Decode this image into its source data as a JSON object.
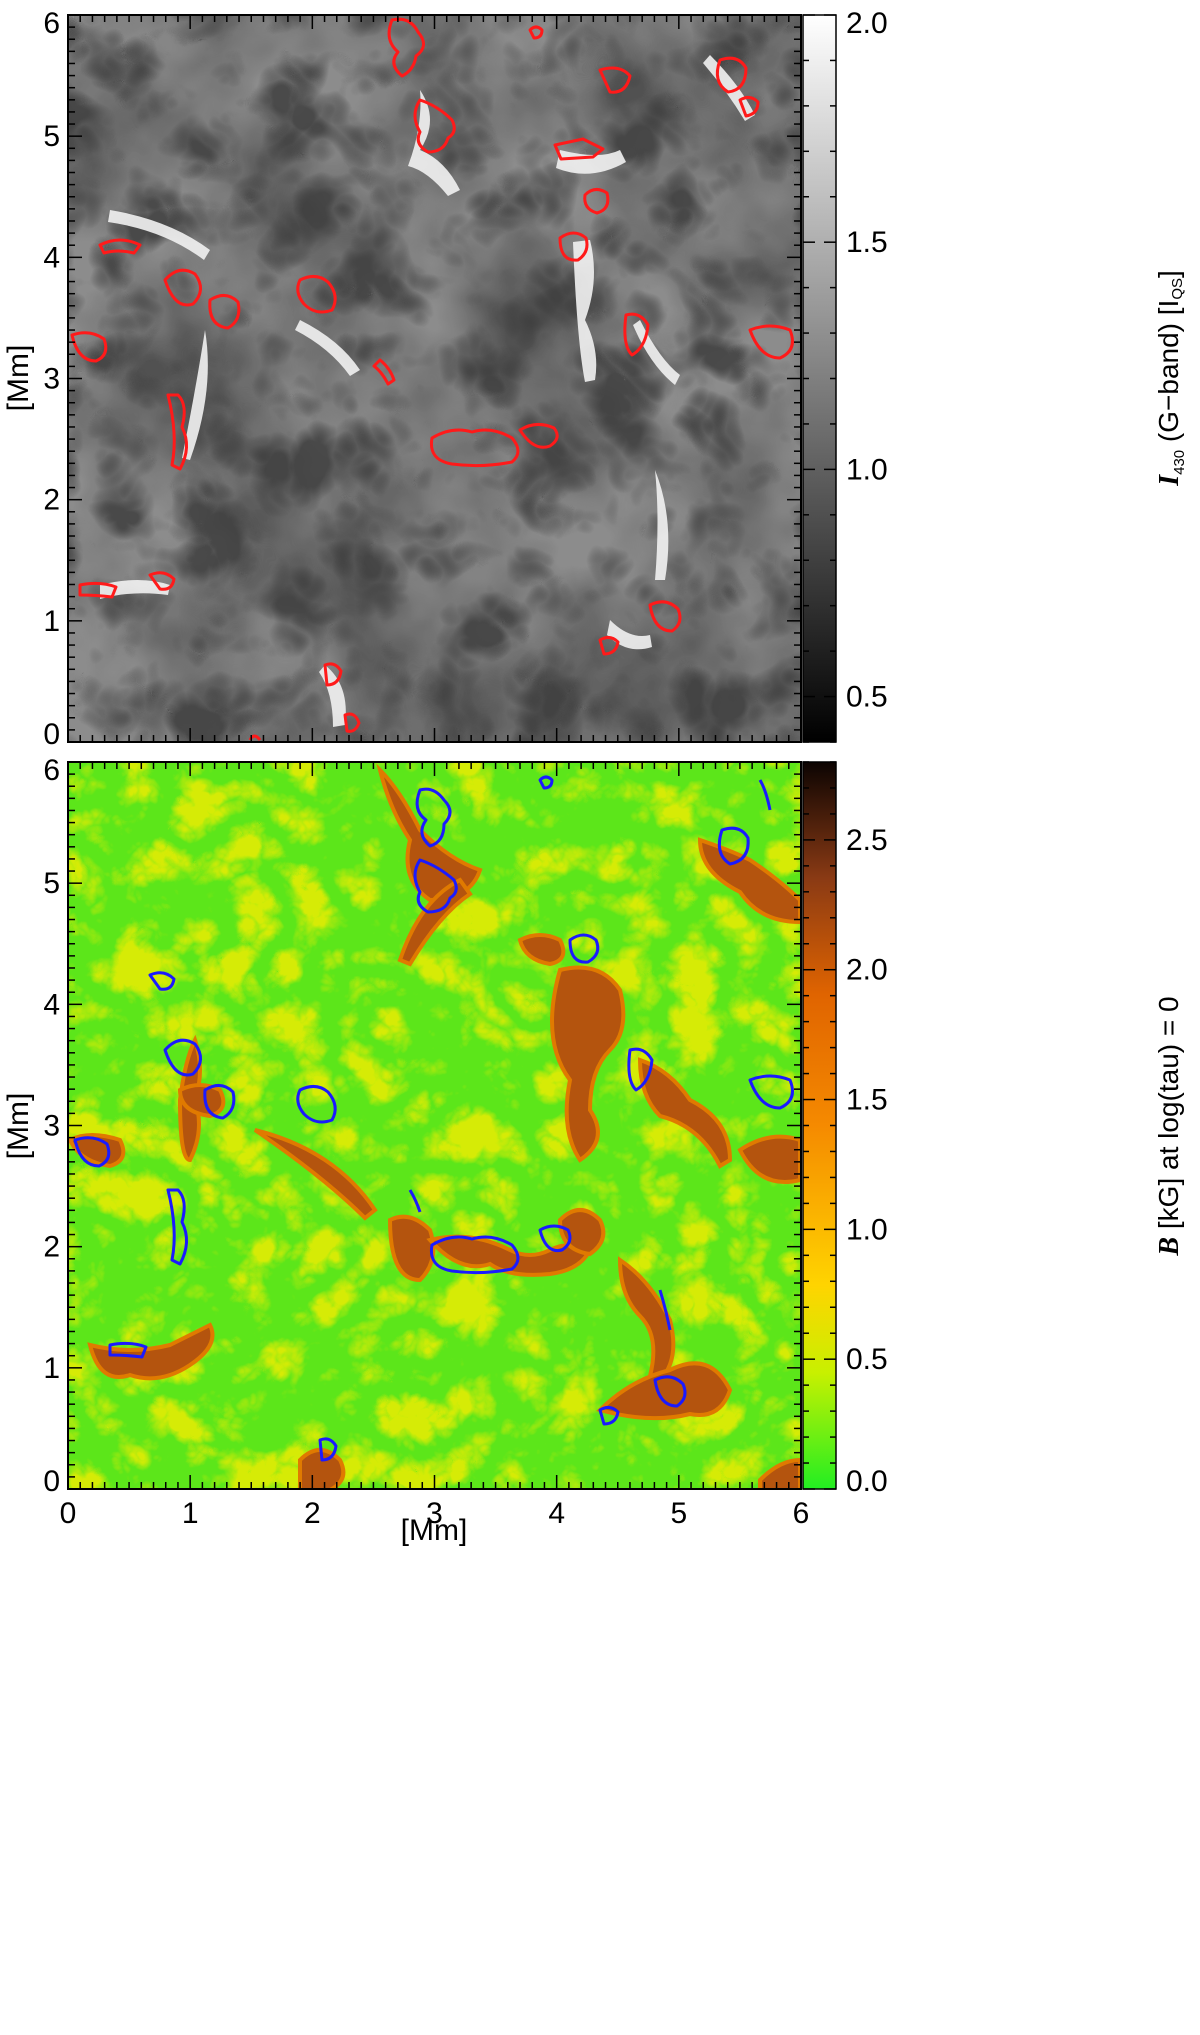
{
  "chart_data": [
    {
      "type": "heatmap",
      "panel": "top",
      "xlim": [
        0,
        6
      ],
      "ylim": [
        0,
        6
      ],
      "ylabel": "[Mm]",
      "xlabel": "",
      "x_ticks": [
        "0",
        "1",
        "2",
        "3",
        "4",
        "5",
        "6"
      ],
      "y_ticks": [
        "0",
        "1",
        "2",
        "3",
        "4",
        "5",
        "6"
      ],
      "colorbar": {
        "range": [
          0.4,
          2.0
        ],
        "ticks": [
          "0.5",
          "1.0",
          "1.5",
          "2.0"
        ],
        "tick_values": [
          0.5,
          1.0,
          1.5,
          2.0
        ],
        "label_symbol": "I",
        "label_sub": "430",
        "label_text": " (G−band) [I",
        "label_sub2": "QS",
        "label_end": "]",
        "colormap": "grayscale"
      },
      "contour_color": "#ff1a1a"
    },
    {
      "type": "heatmap",
      "panel": "bottom",
      "xlim": [
        0,
        6
      ],
      "ylim": [
        0,
        6
      ],
      "ylabel": "[Mm]",
      "xlabel": "[Mm]",
      "x_ticks": [
        "0",
        "1",
        "2",
        "3",
        "4",
        "5",
        "6"
      ],
      "y_ticks": [
        "0",
        "1",
        "2",
        "3",
        "4",
        "5",
        "6"
      ],
      "colorbar": {
        "range": [
          0.0,
          2.8
        ],
        "ticks": [
          "0.0",
          "0.5",
          "1.0",
          "1.5",
          "2.0",
          "2.5"
        ],
        "tick_values": [
          0.0,
          0.5,
          1.0,
          1.5,
          2.0,
          2.5
        ],
        "label_symbol": "B",
        "label_text": " [kG] at log(tau) = 0",
        "colormap": "green-yellow-orange-brown"
      },
      "contour_color": "#1a1aff"
    }
  ]
}
